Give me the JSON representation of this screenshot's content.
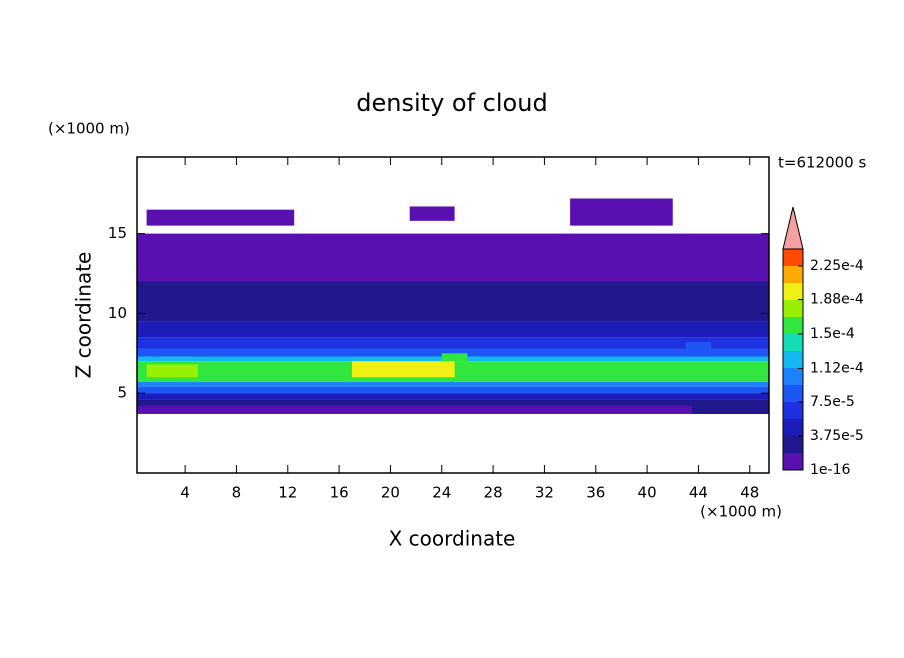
{
  "chart_data": {
    "type": "contour",
    "title": "density of cloud",
    "time_label": "t=612000 s",
    "x_label": "X coordinate",
    "y_label": "Z coordinate",
    "x_unit": "(×1000 m)",
    "y_unit": "(×1000 m)",
    "xlim": [
      0.25,
      49.5
    ],
    "ylim": [
      0,
      19.8
    ],
    "xticks": [
      4,
      8,
      12,
      16,
      20,
      24,
      28,
      32,
      36,
      40,
      44,
      48
    ],
    "yticks": [
      5,
      10,
      15
    ],
    "cells": [
      {
        "x": [
          1.0,
          12.5
        ],
        "z": [
          15.5,
          16.5
        ],
        "value": 1e-05
      },
      {
        "x": [
          21.5,
          25.0
        ],
        "z": [
          15.8,
          16.7
        ],
        "value": 1e-05
      },
      {
        "x": [
          34.0,
          42.0
        ],
        "z": [
          15.5,
          17.2
        ],
        "value": 1e-05
      },
      {
        "x": [
          0.25,
          49.5
        ],
        "z": [
          12.0,
          15.0
        ],
        "value": 1e-05
      },
      {
        "x": [
          0.25,
          49.5
        ],
        "z": [
          9.5,
          12.0
        ],
        "value": 2e-05
      },
      {
        "x": [
          0.25,
          49.5
        ],
        "z": [
          8.5,
          9.5
        ],
        "value": 4e-05
      },
      {
        "x": [
          0.25,
          49.5
        ],
        "z": [
          7.8,
          8.5
        ],
        "value": 6e-05
      },
      {
        "x": [
          0.25,
          49.5
        ],
        "z": [
          7.3,
          7.8
        ],
        "value": 9e-05
      },
      {
        "x": [
          0.25,
          49.5
        ],
        "z": [
          7.0,
          7.3
        ],
        "value": 0.00012
      },
      {
        "x": [
          0.25,
          49.5
        ],
        "z": [
          5.7,
          7.0
        ],
        "value": 0.00016
      },
      {
        "x": [
          0.25,
          49.5
        ],
        "z": [
          5.4,
          5.7
        ],
        "value": 0.00011
      },
      {
        "x": [
          0.25,
          49.5
        ],
        "z": [
          5.0,
          5.4
        ],
        "value": 8e-05
      },
      {
        "x": [
          0.25,
          49.5
        ],
        "z": [
          4.6,
          5.0
        ],
        "value": 5e-05
      },
      {
        "x": [
          0.25,
          49.5
        ],
        "z": [
          4.2,
          4.6
        ],
        "value": 2e-05
      },
      {
        "x": [
          0.25,
          49.5
        ],
        "z": [
          3.7,
          4.2
        ],
        "value": 1e-05
      },
      {
        "x": [
          17.0,
          25.0
        ],
        "z": [
          6.0,
          7.0
        ],
        "value": 0.00019
      },
      {
        "x": [
          1.0,
          5.0
        ],
        "z": [
          6.0,
          6.8
        ],
        "value": 0.00018
      },
      {
        "x": [
          24.0,
          26.0
        ],
        "z": [
          7.0,
          7.5
        ],
        "value": 0.00016
      },
      {
        "x": [
          43.0,
          45.0
        ],
        "z": [
          7.3,
          8.2
        ],
        "value": 9e-05
      },
      {
        "x": [
          43.5,
          49.5
        ],
        "z": [
          3.7,
          4.4
        ],
        "value": 2e-05
      }
    ],
    "colorbar": {
      "levels": [
        1e-16,
        1.875e-05,
        3.75e-05,
        5.625e-05,
        7.5e-05,
        9.375e-05,
        0.0001125,
        0.00013125,
        0.00015,
        0.00016875,
        0.0001875,
        0.00020625,
        0.000225,
        0.00024375
      ],
      "colors": [
        "#5a0fb0",
        "#20188c",
        "#1c1cb8",
        "#1e30e0",
        "#1e55f5",
        "#1e82ff",
        "#14b9f0",
        "#14dcb4",
        "#32e640",
        "#96f000",
        "#f0f014",
        "#ffaa00",
        "#ff4a00"
      ],
      "extend_color": "#f4a0a0",
      "ticks": [
        {
          "value": 1e-16,
          "label": "1e-16"
        },
        {
          "value": 3.75e-05,
          "label": "3.75e-5"
        },
        {
          "value": 7.5e-05,
          "label": "7.5e-5"
        },
        {
          "value": 0.000112,
          "label": "1.12e-4"
        },
        {
          "value": 0.00015,
          "label": "1.5e-4"
        },
        {
          "value": 0.000188,
          "label": "1.88e-4"
        },
        {
          "value": 0.000225,
          "label": "2.25e-4"
        }
      ]
    }
  }
}
